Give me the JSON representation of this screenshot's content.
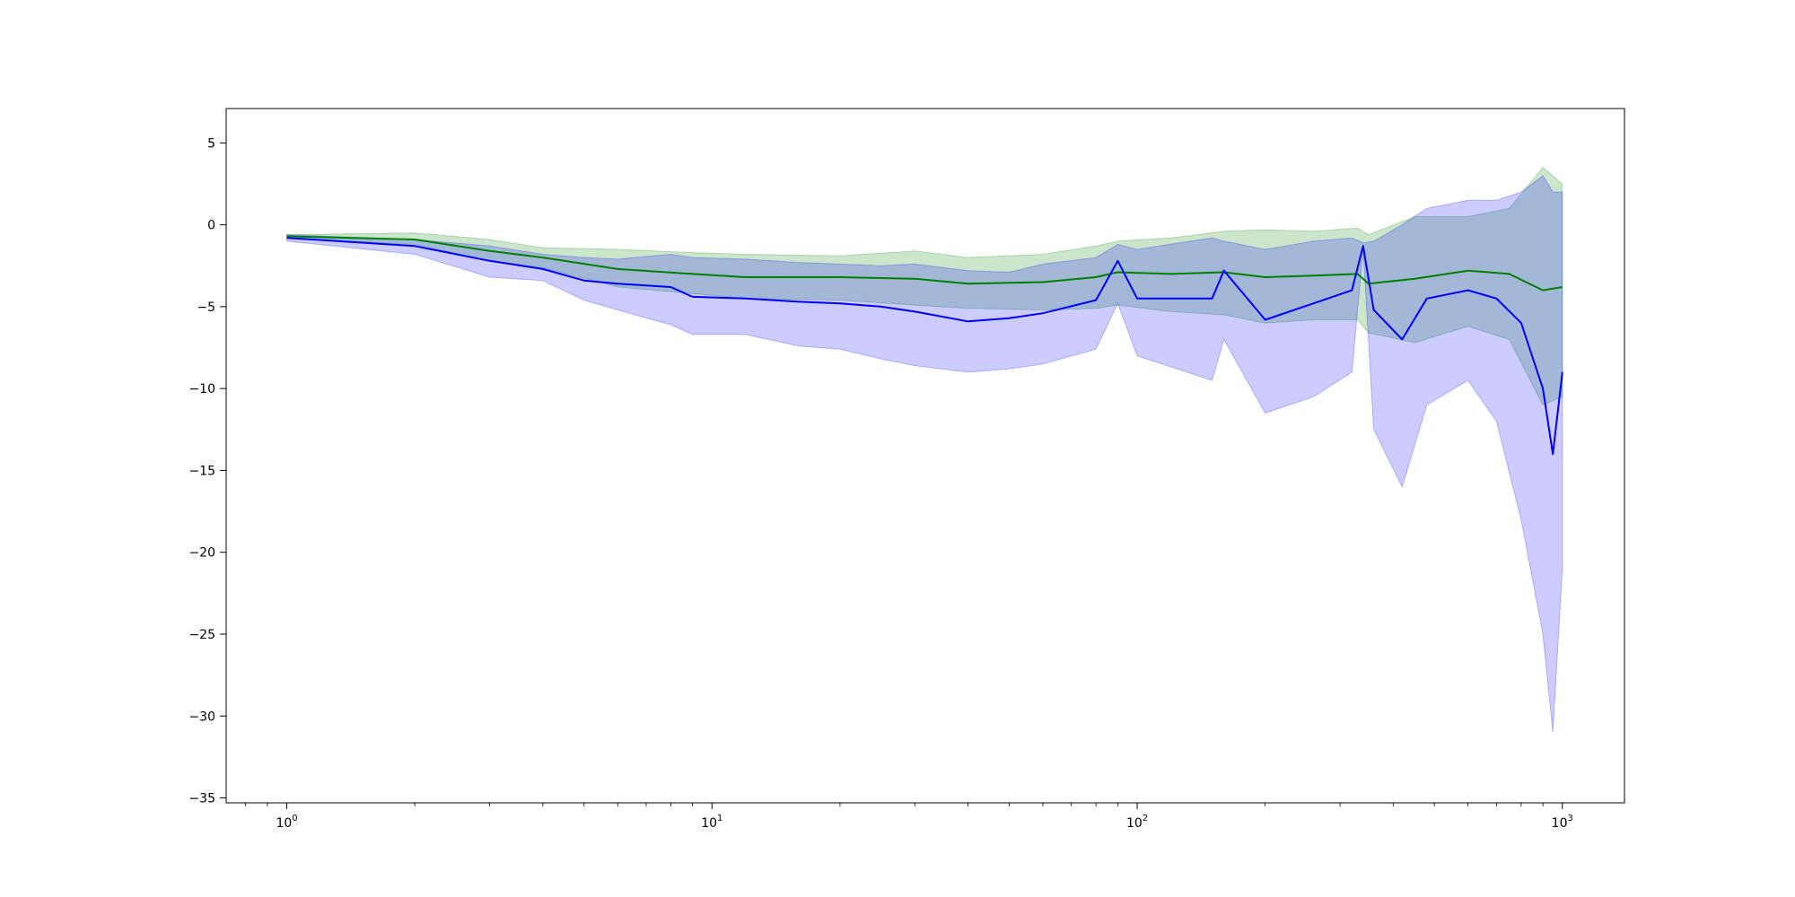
{
  "chart_data": {
    "type": "line",
    "title": "",
    "xlabel": "",
    "ylabel": "",
    "xscale": "log",
    "xlim": [
      0.72,
      1400
    ],
    "ylim": [
      -35.3,
      7.1
    ],
    "grid": false,
    "legend": "none",
    "y_ticks": [
      5,
      0,
      -5,
      -10,
      -15,
      -20,
      -25,
      -30,
      -35
    ],
    "y_tick_labels": [
      "5",
      "0",
      "−5",
      "−10",
      "−15",
      "−20",
      "−25",
      "−30",
      "−35"
    ],
    "x_ticks": [
      1,
      10,
      100,
      1000
    ],
    "x_tick_labels": [
      {
        "base": "10",
        "exp": "0"
      },
      {
        "base": "10",
        "exp": "1"
      },
      {
        "base": "10",
        "exp": "2"
      },
      {
        "base": "10",
        "exp": "3"
      }
    ],
    "series": [
      {
        "color": "#008000",
        "band_color": "#008000",
        "points": [
          [
            1,
            -0.7,
            -0.6,
            -0.8
          ],
          [
            2,
            -0.9,
            -0.5,
            -1.2
          ],
          [
            3,
            -1.6,
            -0.9,
            -2.2
          ],
          [
            4,
            -2.0,
            -1.4,
            -2.6
          ],
          [
            6,
            -2.7,
            -1.5,
            -3.8
          ],
          [
            9,
            -3.0,
            -1.7,
            -4.2
          ],
          [
            12,
            -3.2,
            -1.8,
            -4.5
          ],
          [
            20,
            -3.2,
            -1.9,
            -4.6
          ],
          [
            30,
            -3.3,
            -1.6,
            -4.9
          ],
          [
            40,
            -3.6,
            -2.0,
            -5.1
          ],
          [
            60,
            -3.5,
            -1.8,
            -5.2
          ],
          [
            80,
            -3.2,
            -1.3,
            -5.1
          ],
          [
            90,
            -2.9,
            -1.0,
            -4.9
          ],
          [
            120,
            -3.0,
            -0.8,
            -5.3
          ],
          [
            160,
            -2.9,
            -0.4,
            -5.5
          ],
          [
            200,
            -3.2,
            -0.3,
            -6.0
          ],
          [
            260,
            -3.1,
            -0.4,
            -5.8
          ],
          [
            330,
            -3.0,
            -0.2,
            -5.8
          ],
          [
            350,
            -3.6,
            -0.6,
            -6.6
          ],
          [
            450,
            -3.3,
            0.5,
            -7.2
          ],
          [
            600,
            -2.8,
            0.5,
            -6.2
          ],
          [
            750,
            -3.0,
            1.0,
            -7.0
          ],
          [
            900,
            -4.0,
            3.5,
            -11.0
          ],
          [
            1000,
            -3.8,
            2.5,
            -10.5
          ]
        ]
      },
      {
        "color": "#0000ff",
        "band_color": "#0000ff",
        "points": [
          [
            1,
            -0.8,
            -0.6,
            -1.0
          ],
          [
            2,
            -1.3,
            -0.9,
            -1.8
          ],
          [
            3,
            -2.2,
            -1.3,
            -3.2
          ],
          [
            4,
            -2.7,
            -1.8,
            -3.4
          ],
          [
            5,
            -3.4,
            -2.0,
            -4.6
          ],
          [
            6,
            -3.6,
            -2.1,
            -5.2
          ],
          [
            8,
            -3.8,
            -1.8,
            -6.1
          ],
          [
            9,
            -4.4,
            -2.0,
            -6.7
          ],
          [
            12,
            -4.5,
            -2.1,
            -6.7
          ],
          [
            16,
            -4.7,
            -2.3,
            -7.4
          ],
          [
            20,
            -4.8,
            -2.4,
            -7.6
          ],
          [
            25,
            -5.0,
            -2.5,
            -8.2
          ],
          [
            30,
            -5.3,
            -2.4,
            -8.6
          ],
          [
            40,
            -5.9,
            -2.8,
            -9.0
          ],
          [
            50,
            -5.7,
            -2.9,
            -8.8
          ],
          [
            60,
            -5.4,
            -2.4,
            -8.5
          ],
          [
            80,
            -4.6,
            -2.0,
            -7.6
          ],
          [
            90,
            -2.2,
            -1.2,
            -4.8
          ],
          [
            100,
            -4.5,
            -1.5,
            -8.0
          ],
          [
            150,
            -4.5,
            -0.8,
            -9.5
          ],
          [
            160,
            -2.8,
            -1.0,
            -7.0
          ],
          [
            200,
            -5.8,
            -1.5,
            -11.5
          ],
          [
            260,
            -4.8,
            -1.0,
            -10.5
          ],
          [
            320,
            -4.0,
            -0.8,
            -9.0
          ],
          [
            340,
            -1.3,
            -1.1,
            -1.5
          ],
          [
            360,
            -5.2,
            -1.0,
            -12.5
          ],
          [
            420,
            -7.0,
            0.0,
            -16.0
          ],
          [
            480,
            -4.5,
            1.0,
            -11.0
          ],
          [
            600,
            -4.0,
            1.5,
            -9.5
          ],
          [
            700,
            -4.5,
            1.5,
            -12.0
          ],
          [
            800,
            -6.0,
            2.0,
            -18.0
          ],
          [
            900,
            -10.0,
            3.0,
            -25.0
          ],
          [
            950,
            -14.0,
            2.0,
            -31.0
          ],
          [
            1000,
            -9.0,
            2.0,
            -21.0
          ]
        ]
      }
    ]
  }
}
